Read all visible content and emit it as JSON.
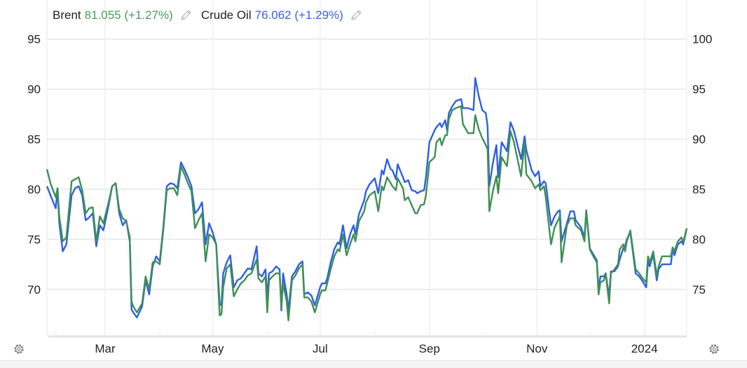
{
  "legend": [
    {
      "name": "Brent",
      "value": "81.055 (+1.27%)",
      "color": "#4a9a5e",
      "icon": "pencil-icon"
    },
    {
      "name": "Crude Oil",
      "value": "76.062 (+1.29%)",
      "color": "#3b5fe0",
      "icon": "pencil-icon"
    }
  ],
  "controls": {
    "left_icon": "gear-icon",
    "right_icon": "gear-icon"
  },
  "chart_data": {
    "type": "line",
    "title": "",
    "xlabel": "",
    "ylabel": "",
    "grid": true,
    "legend_placement": "top-left",
    "x_ticks": [
      "Mar",
      "May",
      "Jul",
      "Sep",
      "Nov",
      "2024"
    ],
    "x_tick_dates": [
      "2023-03-01",
      "2023-05-01",
      "2023-07-01",
      "2023-09-01",
      "2023-11-01",
      "2024-01-01"
    ],
    "xlim": [
      "2023-01-27",
      "2024-01-25"
    ],
    "y_left": {
      "ticks": [
        95,
        90,
        85,
        80,
        75,
        70
      ],
      "ylim": [
        65.3,
        98.9
      ]
    },
    "y_right": {
      "ticks": [
        100,
        95,
        90,
        85,
        80,
        75
      ],
      "ylim": [
        70.3,
        103.9
      ]
    },
    "x": [
      "2023-01-27",
      "2023-01-29",
      "2023-02-01",
      "2023-02-02",
      "2023-02-03",
      "2023-02-05",
      "2023-02-07",
      "2023-02-10",
      "2023-02-12",
      "2023-02-14",
      "2023-02-16",
      "2023-02-18",
      "2023-02-20",
      "2023-02-22",
      "2023-02-24",
      "2023-02-26",
      "2023-02-28",
      "2023-03-03",
      "2023-03-05",
      "2023-03-07",
      "2023-03-09",
      "2023-03-11",
      "2023-03-13",
      "2023-03-15",
      "2023-03-16",
      "2023-03-17",
      "2023-03-19",
      "2023-03-22",
      "2023-03-24",
      "2023-03-26",
      "2023-03-28",
      "2023-03-30",
      "2023-04-01",
      "2023-04-03",
      "2023-04-05",
      "2023-04-07",
      "2023-04-09",
      "2023-04-11",
      "2023-04-13",
      "2023-04-15",
      "2023-04-17",
      "2023-04-19",
      "2023-04-21",
      "2023-04-23",
      "2023-04-25",
      "2023-04-27",
      "2023-04-29",
      "2023-05-01",
      "2023-05-03",
      "2023-05-05",
      "2023-05-06",
      "2023-05-07",
      "2023-05-09",
      "2023-05-11",
      "2023-05-13",
      "2023-05-15",
      "2023-05-17",
      "2023-05-19",
      "2023-05-21",
      "2023-05-23",
      "2023-05-26",
      "2023-05-27",
      "2023-05-29",
      "2023-05-31",
      "2023-06-01",
      "2023-06-02",
      "2023-06-04",
      "2023-06-06",
      "2023-06-08",
      "2023-06-09",
      "2023-06-10",
      "2023-06-12",
      "2023-06-13",
      "2023-06-15",
      "2023-06-17",
      "2023-06-19",
      "2023-06-21",
      "2023-06-22",
      "2023-06-24",
      "2023-06-26",
      "2023-06-28",
      "2023-07-01",
      "2023-07-02",
      "2023-07-04",
      "2023-07-05",
      "2023-07-07",
      "2023-07-09",
      "2023-07-11",
      "2023-07-12",
      "2023-07-14",
      "2023-07-16",
      "2023-07-18",
      "2023-07-20",
      "2023-07-21",
      "2023-07-23",
      "2023-07-26",
      "2023-07-27",
      "2023-07-29",
      "2023-08-01",
      "2023-08-03",
      "2023-08-05",
      "2023-08-06",
      "2023-08-08",
      "2023-08-10",
      "2023-08-11",
      "2023-08-13",
      "2023-08-14",
      "2023-08-17",
      "2023-08-18",
      "2023-08-20",
      "2023-08-22",
      "2023-08-24",
      "2023-08-25",
      "2023-08-27",
      "2023-08-29",
      "2023-08-30",
      "2023-09-01",
      "2023-09-04",
      "2023-09-05",
      "2023-09-07",
      "2023-09-08",
      "2023-09-10",
      "2023-09-11",
      "2023-09-12",
      "2023-09-14",
      "2023-09-16",
      "2023-09-19",
      "2023-09-20",
      "2023-09-23",
      "2023-09-26",
      "2023-09-27",
      "2023-09-29",
      "2023-10-01",
      "2023-10-03",
      "2023-10-04",
      "2023-10-05",
      "2023-10-07",
      "2023-10-09",
      "2023-10-10",
      "2023-10-12",
      "2023-10-15",
      "2023-10-17",
      "2023-10-19",
      "2023-10-21",
      "2023-10-23",
      "2023-10-25",
      "2023-10-26",
      "2023-10-29",
      "2023-10-31",
      "2023-11-02",
      "2023-11-03",
      "2023-11-05",
      "2023-11-06",
      "2023-11-09",
      "2023-11-11",
      "2023-11-13",
      "2023-11-14",
      "2023-11-15",
      "2023-11-18",
      "2023-11-20",
      "2023-11-22",
      "2023-11-23",
      "2023-11-26",
      "2023-11-28",
      "2023-11-29",
      "2023-12-01",
      "2023-12-03",
      "2023-12-05",
      "2023-12-06",
      "2023-12-07",
      "2023-12-09",
      "2023-12-10",
      "2023-12-12",
      "2023-12-13",
      "2023-12-15",
      "2023-12-17",
      "2023-12-18",
      "2023-12-20",
      "2023-12-21",
      "2023-12-22",
      "2023-12-24",
      "2023-12-27",
      "2023-12-29",
      "2023-12-31",
      "2024-01-02",
      "2024-01-03",
      "2024-01-04",
      "2024-01-06",
      "2024-01-08",
      "2024-01-09",
      "2024-01-11",
      "2024-01-13",
      "2024-01-16",
      "2024-01-17",
      "2024-01-18",
      "2024-01-20",
      "2024-01-22",
      "2024-01-23",
      "2024-01-25"
    ],
    "series": [
      {
        "name": "Crude Oil",
        "axis": "left",
        "color": "#2f5fe6",
        "values": [
          80.3,
          79.4,
          78.1,
          80.1,
          76.6,
          73.8,
          74.5,
          79.4,
          80.1,
          80.3,
          79.4,
          76.9,
          77.2,
          77.6,
          74.3,
          76.4,
          75.9,
          78.4,
          80.3,
          80.6,
          77.6,
          76.4,
          76.9,
          74.8,
          68.0,
          67.7,
          67.2,
          68.3,
          70.9,
          69.5,
          72.3,
          73.3,
          72.8,
          76.2,
          80.3,
          80.6,
          80.5,
          80.1,
          82.7,
          82.0,
          81.2,
          80.3,
          77.6,
          78.0,
          78.7,
          74.5,
          76.6,
          75.7,
          74.5,
          68.6,
          68.4,
          71.6,
          72.7,
          73.4,
          70.2,
          70.9,
          71.1,
          71.6,
          72.1,
          72.0,
          74.3,
          71.6,
          71.3,
          72.0,
          69.2,
          71.6,
          71.8,
          72.3,
          72.0,
          67.9,
          71.6,
          69.5,
          67.9,
          71.3,
          71.8,
          72.5,
          72.8,
          69.5,
          69.7,
          69.4,
          68.4,
          70.2,
          70.6,
          70.6,
          71.1,
          72.7,
          74.0,
          74.7,
          74.5,
          76.4,
          74.1,
          75.5,
          76.4,
          75.5,
          77.5,
          78.9,
          79.8,
          80.5,
          81.1,
          79.6,
          81.9,
          81.5,
          83.0,
          82.0,
          81.9,
          81.0,
          82.5,
          81.2,
          80.7,
          80.9,
          79.9,
          79.8,
          79.6,
          79.8,
          79.9,
          81.2,
          84.7,
          85.9,
          86.2,
          86.6,
          86.2,
          86.9,
          85.9,
          87.6,
          88.3,
          88.8,
          89.0,
          88.1,
          88.1,
          87.9,
          91.1,
          89.3,
          87.9,
          87.6,
          86.3,
          80.3,
          82.6,
          84.4,
          81.2,
          84.7,
          83.8,
          86.7,
          85.8,
          84.4,
          83.0,
          85.3,
          83.9,
          81.9,
          81.3,
          81.8,
          80.3,
          80.8,
          80.6,
          76.4,
          77.3,
          77.8,
          77.9,
          74.8,
          76.6,
          77.8,
          77.8,
          76.9,
          76.2,
          75.2,
          77.9,
          74.1,
          73.5,
          72.9,
          69.9,
          71.3,
          71.3,
          71.6,
          69.3,
          71.8,
          71.8,
          72.3,
          73.0,
          74.1,
          74.3,
          75.0,
          75.7,
          71.6,
          71.3,
          70.8,
          70.2,
          72.8,
          72.3,
          73.5,
          70.9,
          72.0,
          72.5,
          72.5,
          72.5,
          74.1,
          73.4,
          74.5,
          74.8,
          74.5,
          76.1
        ]
      },
      {
        "name": "Brent",
        "axis": "right",
        "color": "#3f8f55",
        "values": [
          87.0,
          85.6,
          84.2,
          85.1,
          82.3,
          79.8,
          80.2,
          85.8,
          86.0,
          86.2,
          84.9,
          82.6,
          83.1,
          83.2,
          79.8,
          82.3,
          81.6,
          83.7,
          85.3,
          85.6,
          83.0,
          82.1,
          81.8,
          80.2,
          73.8,
          73.3,
          72.7,
          73.6,
          76.3,
          75.0,
          77.7,
          77.8,
          77.5,
          80.9,
          84.9,
          85.1,
          85.1,
          84.4,
          87.3,
          86.5,
          85.6,
          84.8,
          81.1,
          81.9,
          82.6,
          77.8,
          80.5,
          80.2,
          79.5,
          72.4,
          72.5,
          75.2,
          77.1,
          77.5,
          74.3,
          75.0,
          75.6,
          75.9,
          76.4,
          76.6,
          78.0,
          76.1,
          75.7,
          76.3,
          72.7,
          75.9,
          76.3,
          76.6,
          76.6,
          73.2,
          75.6,
          73.8,
          71.9,
          75.9,
          76.4,
          77.1,
          77.5,
          74.2,
          74.2,
          73.8,
          72.7,
          74.5,
          74.9,
          74.9,
          75.6,
          77.0,
          78.3,
          79.0,
          78.8,
          80.5,
          78.4,
          79.5,
          80.5,
          79.8,
          81.8,
          82.8,
          83.7,
          84.4,
          84.8,
          82.8,
          85.3,
          84.9,
          86.2,
          85.6,
          85.3,
          84.9,
          86.1,
          85.1,
          83.9,
          84.2,
          83.4,
          82.6,
          82.6,
          83.4,
          83.5,
          84.4,
          87.7,
          88.2,
          89.7,
          90.1,
          89.4,
          90.4,
          90.4,
          92.0,
          92.9,
          93.1,
          93.3,
          91.5,
          90.6,
          90.6,
          92.4,
          91.0,
          90.1,
          89.4,
          89.0,
          82.8,
          84.8,
          86.3,
          84.6,
          88.2,
          87.3,
          90.8,
          89.7,
          88.0,
          86.3,
          89.7,
          86.5,
          85.8,
          85.1,
          85.5,
          84.9,
          85.3,
          84.2,
          79.5,
          81.2,
          81.9,
          82.3,
          77.7,
          81.4,
          82.1,
          82.1,
          81.4,
          80.9,
          79.8,
          82.8,
          79.0,
          78.3,
          77.7,
          74.5,
          75.7,
          75.9,
          76.6,
          73.6,
          76.6,
          77.0,
          77.5,
          79.0,
          79.5,
          78.8,
          79.8,
          80.9,
          77.0,
          76.6,
          76.1,
          75.7,
          78.3,
          77.7,
          78.8,
          76.4,
          77.3,
          78.3,
          78.3,
          78.3,
          79.2,
          78.8,
          79.8,
          80.2,
          79.7,
          81.1
        ]
      }
    ]
  }
}
